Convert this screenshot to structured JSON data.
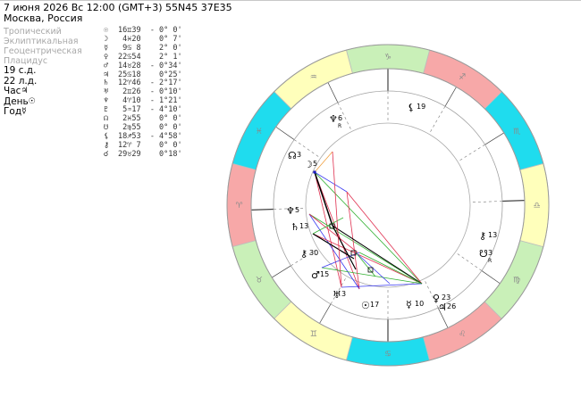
{
  "header": {
    "title_line": "7 июня 2026  Вс  12:00 (GMT+3) 55N45  37E35",
    "location": "Москва, Россия"
  },
  "options": [
    "Тропический",
    "Эклиптикальная",
    "Геоцентрическая",
    "Плацидус"
  ],
  "info": {
    "lunar_day": "19 с.д.",
    "lunar_day2": "22 л.д.",
    "hour": "Час",
    "hour_sym": "♃",
    "day": "День",
    "day_sym": "☉",
    "year": "Год",
    "year_sym": "☿"
  },
  "positions": [
    {
      "glyph": "☉",
      "value": "16♊39  - 0° 0'"
    },
    {
      "glyph": "☽",
      "value": " 4♓20    0° 7'"
    },
    {
      "glyph": "☿",
      "value": " 9♋ 8    2° 0'"
    },
    {
      "glyph": "♀",
      "value": "22♋54    2° 1'"
    },
    {
      "glyph": "♂",
      "value": "14♉28  - 0°34'"
    },
    {
      "glyph": "♃",
      "value": "25♋18    0°25'"
    },
    {
      "glyph": "♄",
      "value": "12♈46  - 2°17'"
    },
    {
      "glyph": "♅",
      "value": " 2♊26  - 0°10'"
    },
    {
      "glyph": "♆",
      "value": " 4♈10  - 1°21'"
    },
    {
      "glyph": "♇",
      "value": " 5♒17  - 4°10'"
    },
    {
      "glyph": "☊",
      "value": " 2♓55    0° 0'"
    },
    {
      "glyph": "☋",
      "value": " 2♍55    0° 0'"
    },
    {
      "glyph": "⚸",
      "value": "18♐53  - 4°58'"
    },
    {
      "glyph": "⚷",
      "value": "12♈ 7    0° 0'"
    },
    {
      "glyph": "☌",
      "value": "29♉29    0°18'"
    }
  ],
  "chart": {
    "zodiac": [
      "♈",
      "♉",
      "♊",
      "♋",
      "♌",
      "♍",
      "♎",
      "♏",
      "♐",
      "♑",
      "♒",
      "♓"
    ],
    "sector_colors": [
      "#f7a8a8",
      "#c9f0b8",
      "#ffffbb",
      "#1fdcee"
    ],
    "planets": [
      {
        "glyph": "⚸",
        "deg": "19",
        "sub": ""
      },
      {
        "glyph": "♆",
        "deg": "6",
        "sub": "R"
      },
      {
        "glyph": "☊",
        "deg": "3",
        "sub": ""
      },
      {
        "glyph": "☽",
        "deg": "5",
        "sub": ""
      },
      {
        "glyph": "♆",
        "deg": "5",
        "sub": ""
      },
      {
        "glyph": "♄",
        "deg": "13",
        "sub": ""
      },
      {
        "glyph": "⚷",
        "deg": "30",
        "sub": ""
      },
      {
        "glyph": "♂",
        "deg": "15",
        "sub": ""
      },
      {
        "glyph": "♅",
        "deg": "3",
        "sub": ""
      },
      {
        "glyph": "☉",
        "deg": "17",
        "sub": ""
      },
      {
        "glyph": "☿",
        "deg": "10",
        "sub": ""
      },
      {
        "glyph": "♀",
        "deg": "23",
        "sub": ""
      },
      {
        "glyph": "♃",
        "deg": "26",
        "sub": ""
      },
      {
        "glyph": "⚷",
        "deg": "13",
        "sub": ""
      },
      {
        "glyph": "☋",
        "deg": "3",
        "sub": "R"
      }
    ]
  }
}
